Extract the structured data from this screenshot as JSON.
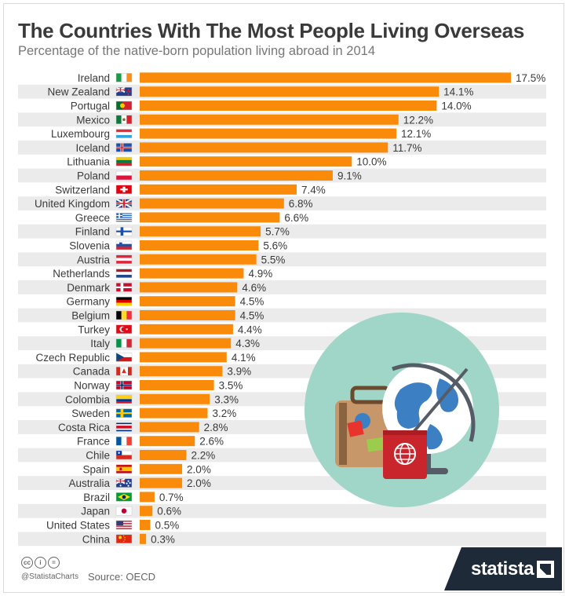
{
  "header": {
    "title": "The Countries With The Most People Living Overseas",
    "subtitle": "Percentage of the native-born population living abroad in 2014"
  },
  "chart_data": {
    "type": "bar",
    "orientation": "horizontal",
    "title": "The Countries With The Most People Living Overseas",
    "subtitle": "Percentage of the native-born population living abroad in 2014",
    "categories": [
      "Ireland",
      "New Zealand",
      "Portugal",
      "Mexico",
      "Luxembourg",
      "Iceland",
      "Lithuania",
      "Poland",
      "Switzerland",
      "United Kingdom",
      "Greece",
      "Finland",
      "Slovenia",
      "Austria",
      "Netherlands",
      "Denmark",
      "Germany",
      "Belgium",
      "Turkey",
      "Italy",
      "Czech Republic",
      "Canada",
      "Norway",
      "Colombia",
      "Sweden",
      "Costa Rica",
      "France",
      "Chile",
      "Spain",
      "Australia",
      "Brazil",
      "Japan",
      "United States",
      "China"
    ],
    "values": [
      17.5,
      14.1,
      14.0,
      12.2,
      12.1,
      11.7,
      10.0,
      9.1,
      7.4,
      6.8,
      6.6,
      5.7,
      5.6,
      5.5,
      4.9,
      4.6,
      4.5,
      4.5,
      4.4,
      4.3,
      4.1,
      3.9,
      3.5,
      3.3,
      3.2,
      2.8,
      2.6,
      2.2,
      2.0,
      2.0,
      0.7,
      0.6,
      0.5,
      0.3
    ],
    "value_labels": [
      "17.5%",
      "14.1%",
      "14.0%",
      "12.2%",
      "12.1%",
      "11.7%",
      "10.0%",
      "9.1%",
      "7.4%",
      "6.8%",
      "6.6%",
      "5.7%",
      "5.6%",
      "5.5%",
      "4.9%",
      "4.6%",
      "4.5%",
      "4.5%",
      "4.4%",
      "4.3%",
      "4.1%",
      "3.9%",
      "3.5%",
      "3.3%",
      "3.2%",
      "2.8%",
      "2.6%",
      "2.2%",
      "2.0%",
      "2.0%",
      "0.7%",
      "0.6%",
      "0.5%",
      "0.3%"
    ],
    "flags": [
      "ireland-flag",
      "new-zealand-flag",
      "portugal-flag",
      "mexico-flag",
      "luxembourg-flag",
      "iceland-flag",
      "lithuania-flag",
      "poland-flag",
      "switzerland-flag",
      "united-kingdom-flag",
      "greece-flag",
      "finland-flag",
      "slovenia-flag",
      "austria-flag",
      "netherlands-flag",
      "denmark-flag",
      "germany-flag",
      "belgium-flag",
      "turkey-flag",
      "italy-flag",
      "czech-republic-flag",
      "canada-flag",
      "norway-flag",
      "colombia-flag",
      "sweden-flag",
      "costa-rica-flag",
      "france-flag",
      "chile-flag",
      "spain-flag",
      "australia-flag",
      "brazil-flag",
      "japan-flag",
      "united-states-flag",
      "china-flag"
    ],
    "xlim": [
      0,
      17.5
    ],
    "bar_color": "#f98a0a",
    "stripe_color": "#ebebeb",
    "grid": false,
    "legend": "none"
  },
  "illustration": {
    "name": "travel-illustration",
    "icons": [
      "suitcase-icon",
      "globe-icon",
      "passport-icon"
    ],
    "circle_color": "#9fd6c8"
  },
  "footer": {
    "handle": "@StatistaCharts",
    "source": "Source: OECD",
    "brand": "statista",
    "license_icons": [
      "cc-icon",
      "by-icon",
      "nd-icon"
    ],
    "license_glyphs": [
      "cc",
      "i",
      "="
    ]
  },
  "colors": {
    "title": "#3a3a3a",
    "subtitle": "#777777",
    "brand_bg": "#1f2a38"
  }
}
